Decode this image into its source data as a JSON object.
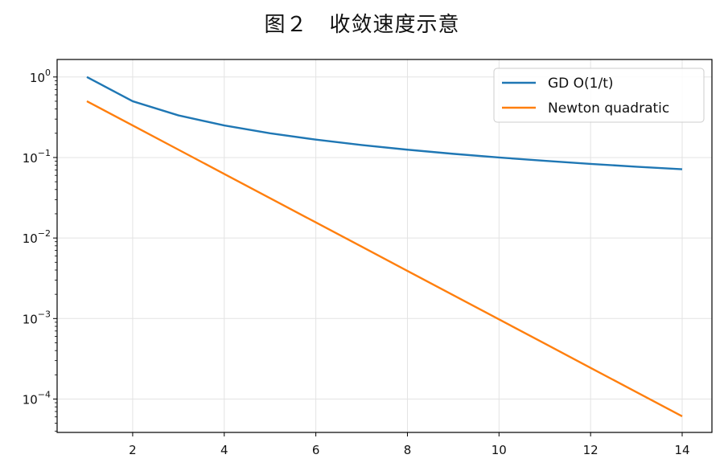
{
  "chart_data": {
    "type": "line",
    "title": "图２　收敛速度示意",
    "xlabel": "",
    "ylabel": "",
    "yscale": "log",
    "xlim": [
      0.35,
      14.65
    ],
    "ylim": [
      3.85e-05,
      1.65
    ],
    "grid": true,
    "legend_position": "top-right",
    "x_ticks": [
      2,
      4,
      6,
      8,
      10,
      12,
      14
    ],
    "y_ticks": [
      {
        "value": 1,
        "base": "10",
        "exp": "0"
      },
      {
        "value": 0.1,
        "base": "10",
        "exp": "−1"
      },
      {
        "value": 0.01,
        "base": "10",
        "exp": "−2"
      },
      {
        "value": 0.001,
        "base": "10",
        "exp": "−3"
      },
      {
        "value": 0.0001,
        "base": "10",
        "exp": "−4"
      }
    ],
    "x": [
      1,
      2,
      3,
      4,
      5,
      6,
      7,
      8,
      9,
      10,
      11,
      12,
      13,
      14
    ],
    "series": [
      {
        "name": "GD O(1/t)",
        "color": "#1f77b4",
        "values": [
          1.0,
          0.5,
          0.3333,
          0.25,
          0.2,
          0.1667,
          0.1429,
          0.125,
          0.1111,
          0.1,
          0.0909,
          0.0833,
          0.0769,
          0.0714
        ]
      },
      {
        "name": "Newton quadratic",
        "color": "#ff7f0e",
        "values": [
          0.5,
          0.25,
          0.125,
          0.0625,
          0.03125,
          0.015625,
          0.0078125,
          0.00390625,
          0.001953125,
          0.0009765625,
          0.00048828125,
          0.000244140625,
          0.0001220703125,
          6.103515625e-05
        ]
      }
    ]
  }
}
